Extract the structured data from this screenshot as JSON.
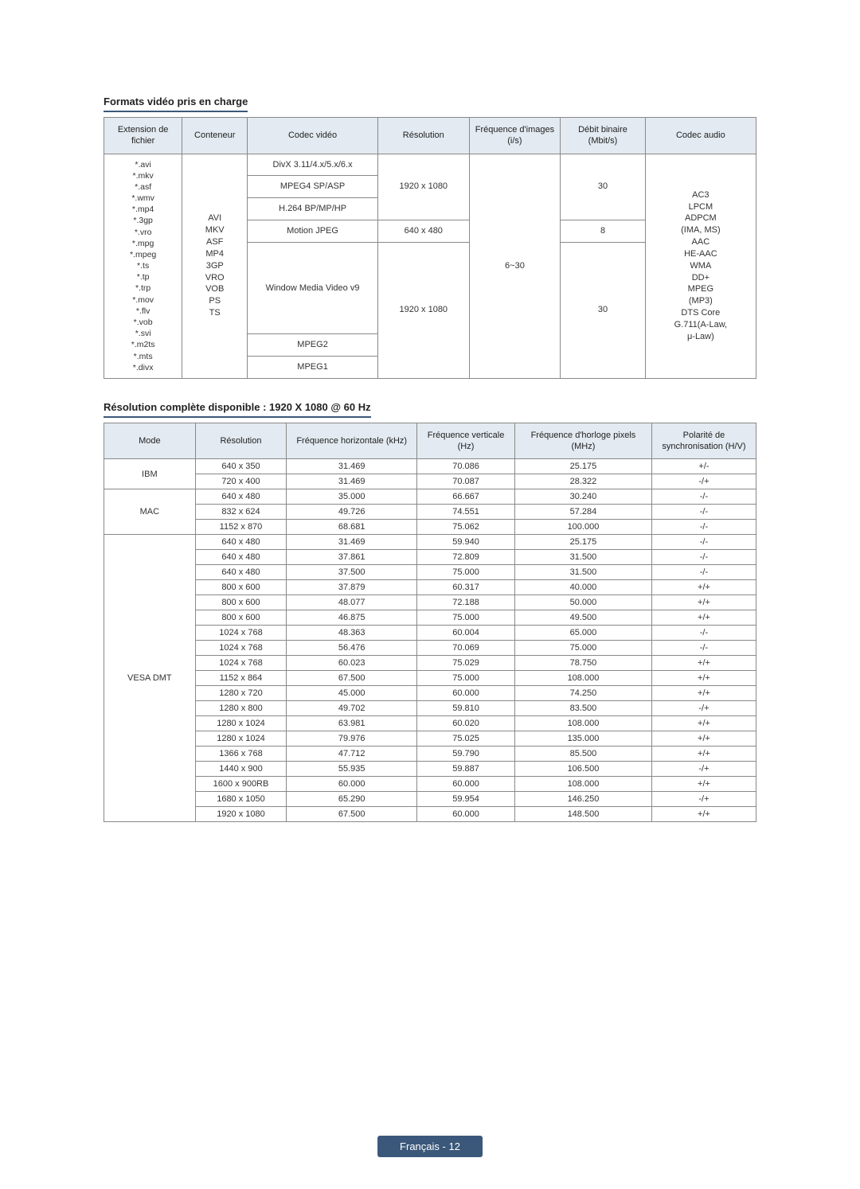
{
  "section1": {
    "title": "Formats vidéo pris en charge",
    "headers": [
      "Extension de fichier",
      "Conteneur",
      "Codec vidéo",
      "Résolution",
      "Fréquence d'images (i/s)",
      "Débit binaire (Mbit/s)",
      "Codec audio"
    ],
    "col_widths": [
      "12%",
      "10%",
      "20%",
      "14%",
      "14%",
      "13%",
      "17%"
    ],
    "file_extensions": "*.avi\n*.mkv\n*.asf\n*.wmv\n*.mp4\n*.3gp\n*.vro\n*.mpg\n*.mpeg\n*.ts\n*.tp\n*.trp\n*.mov\n*.flv\n*.vob\n*.svi\n*.m2ts\n*.mts\n*.divx",
    "containers": "AVI\nMKV\nASF\nMP4\n3GP\nVRO\nVOB\nPS\nTS",
    "codecs": [
      "DivX 3.11/4.x/5.x/6.x",
      "MPEG4 SP/ASP",
      "H.264 BP/MP/HP",
      "Motion JPEG",
      "Window Media Video v9",
      "MPEG2",
      "MPEG1"
    ],
    "res1": "1920 x 1080",
    "res2": "640 x 480",
    "res3": "1920 x 1080",
    "fps": "6~30",
    "bitrate1": "30",
    "bitrate2": "8",
    "bitrate3": "30",
    "audio_codecs": "AC3\nLPCM\nADPCM\n(IMA, MS)\nAAC\nHE-AAC\nWMA\nDD+\nMPEG\n(MP3)\nDTS Core\nG.711(A-Law,\nμ-Law)"
  },
  "section2": {
    "title": "Résolution complète disponible : 1920 X 1080 @ 60 Hz",
    "headers": [
      "Mode",
      "Résolution",
      "Fréquence horizontale (kHz)",
      "Fréquence verticale (Hz)",
      "Fréquence d'horloge pixels (MHz)",
      "Polarité de synchronisation (H/V)"
    ],
    "col_widths": [
      "14%",
      "14%",
      "20%",
      "15%",
      "21%",
      "16%"
    ],
    "groups": [
      {
        "mode": "IBM",
        "rows": [
          [
            "640 x 350",
            "31.469",
            "70.086",
            "25.175",
            "+/-"
          ],
          [
            "720 x 400",
            "31.469",
            "70.087",
            "28.322",
            "-/+"
          ]
        ]
      },
      {
        "mode": "MAC",
        "rows": [
          [
            "640 x 480",
            "35.000",
            "66.667",
            "30.240",
            "-/-"
          ],
          [
            "832 x 624",
            "49.726",
            "74.551",
            "57.284",
            "-/-"
          ],
          [
            "1152 x 870",
            "68.681",
            "75.062",
            "100.000",
            "-/-"
          ]
        ]
      },
      {
        "mode": "VESA DMT",
        "rows": [
          [
            "640 x 480",
            "31.469",
            "59.940",
            "25.175",
            "-/-"
          ],
          [
            "640 x 480",
            "37.861",
            "72.809",
            "31.500",
            "-/-"
          ],
          [
            "640 x 480",
            "37.500",
            "75.000",
            "31.500",
            "-/-"
          ],
          [
            "800 x 600",
            "37.879",
            "60.317",
            "40.000",
            "+/+"
          ],
          [
            "800 x 600",
            "48.077",
            "72.188",
            "50.000",
            "+/+"
          ],
          [
            "800 x 600",
            "46.875",
            "75.000",
            "49.500",
            "+/+"
          ],
          [
            "1024 x 768",
            "48.363",
            "60.004",
            "65.000",
            "-/-"
          ],
          [
            "1024 x 768",
            "56.476",
            "70.069",
            "75.000",
            "-/-"
          ],
          [
            "1024 x 768",
            "60.023",
            "75.029",
            "78.750",
            "+/+"
          ],
          [
            "1152 x 864",
            "67.500",
            "75.000",
            "108.000",
            "+/+"
          ],
          [
            "1280 x 720",
            "45.000",
            "60.000",
            "74.250",
            "+/+"
          ],
          [
            "1280 x 800",
            "49.702",
            "59.810",
            "83.500",
            "-/+"
          ],
          [
            "1280 x 1024",
            "63.981",
            "60.020",
            "108.000",
            "+/+"
          ],
          [
            "1280 x 1024",
            "79.976",
            "75.025",
            "135.000",
            "+/+"
          ],
          [
            "1366 x 768",
            "47.712",
            "59.790",
            "85.500",
            "+/+"
          ],
          [
            "1440 x 900",
            "55.935",
            "59.887",
            "106.500",
            "-/+"
          ],
          [
            "1600 x 900RB",
            "60.000",
            "60.000",
            "108.000",
            "+/+"
          ],
          [
            "1680 x 1050",
            "65.290",
            "59.954",
            "146.250",
            "-/+"
          ],
          [
            "1920 x 1080",
            "67.500",
            "60.000",
            "148.500",
            "+/+"
          ]
        ]
      }
    ]
  },
  "footer": {
    "lang": "Français",
    "sep": " - ",
    "page": "12"
  }
}
